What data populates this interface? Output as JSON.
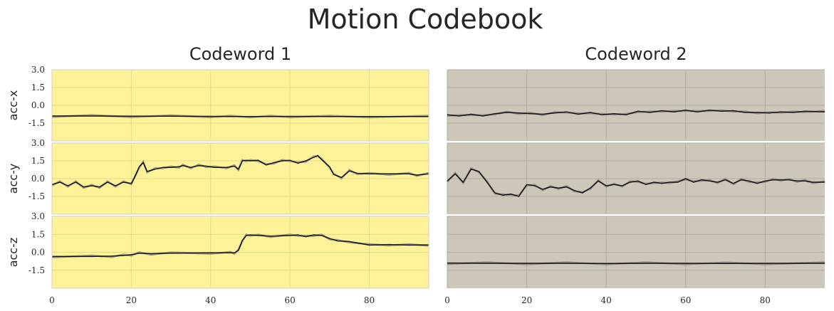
{
  "title": "Motion Codebook",
  "colors": {
    "panel_yellow": "#fef298",
    "panel_gray": "#ccc7b9",
    "yellow_grid": "#e6da8a",
    "gray_grid": "#b3ae9f",
    "recon_line": "#111111",
    "raw_line": "#7a7a72"
  },
  "chart_data": {
    "type": "line",
    "title": "Motion Codebook",
    "grid": true,
    "xlim": [
      0,
      95
    ],
    "ylim": [
      -3.0,
      3.0
    ],
    "x_ticks": [
      "0",
      "20",
      "40",
      "60",
      "80"
    ],
    "y_ticks": [
      "3.0",
      "1.5",
      "0.0",
      "-1.5"
    ],
    "rows": [
      "acc-x",
      "acc-y",
      "acc-z"
    ],
    "columns": [
      {
        "title": "Codeword 1",
        "background": "panel_yellow",
        "show_y_ticks": true,
        "series": {
          "acc-x": {
            "x": [
              0,
              10,
              20,
              30,
              40,
              45,
              50,
              55,
              60,
              70,
              80,
              95
            ],
            "y": [
              -0.9,
              -0.9,
              -0.92,
              -0.92,
              -0.93,
              -0.95,
              -0.94,
              -0.95,
              -0.93,
              -0.95,
              -0.94,
              -0.95
            ]
          },
          "acc-y": {
            "x": [
              0,
              2,
              4,
              6,
              8,
              10,
              12,
              14,
              16,
              18,
              20,
              21,
              22,
              23,
              24,
              26,
              28,
              30,
              32,
              33,
              35,
              37,
              39,
              41,
              44,
              46,
              47,
              48,
              49,
              50,
              52,
              54,
              56,
              58,
              60,
              62,
              64,
              66,
              67,
              68,
              70,
              71,
              73,
              75,
              77,
              80,
              85,
              90,
              92,
              95
            ],
            "y": [
              -0.5,
              -0.3,
              -0.6,
              -0.3,
              -0.7,
              -0.6,
              -0.7,
              -0.3,
              -0.6,
              -0.3,
              -0.4,
              0.2,
              1.0,
              1.35,
              0.6,
              0.8,
              0.95,
              0.95,
              1.0,
              1.1,
              0.95,
              1.1,
              1.05,
              0.95,
              0.95,
              1.05,
              0.8,
              1.5,
              1.55,
              1.5,
              1.55,
              1.15,
              1.35,
              1.5,
              1.55,
              1.3,
              1.5,
              1.8,
              1.95,
              1.6,
              1.0,
              0.35,
              0.1,
              0.65,
              0.45,
              0.4,
              0.4,
              0.4,
              0.3,
              0.4
            ]
          },
          "acc-z": {
            "x": [
              0,
              10,
              15,
              18,
              20,
              22,
              25,
              30,
              40,
              45,
              46,
              47,
              48,
              49,
              50,
              52,
              55,
              60,
              62,
              64,
              66,
              68,
              70,
              72,
              75,
              80,
              85,
              90,
              95
            ],
            "y": [
              -0.35,
              -0.35,
              -0.32,
              -0.27,
              -0.2,
              -0.08,
              -0.12,
              -0.08,
              -0.05,
              -0.05,
              -0.05,
              0.15,
              1.0,
              1.4,
              1.45,
              1.4,
              1.35,
              1.4,
              1.45,
              1.3,
              1.45,
              1.4,
              1.15,
              0.95,
              0.9,
              0.6,
              0.65,
              0.6,
              0.62
            ]
          }
        }
      },
      {
        "title": "Codeword 2",
        "background": "panel_gray",
        "show_y_ticks": false,
        "series": {
          "acc-x": {
            "x": [
              0,
              3,
              6,
              9,
              12,
              15,
              18,
              21,
              24,
              27,
              30,
              33,
              36,
              39,
              42,
              45,
              48,
              51,
              54,
              57,
              60,
              63,
              66,
              69,
              72,
              75,
              78,
              81,
              84,
              87,
              90,
              95
            ],
            "y": [
              -0.8,
              -0.9,
              -0.75,
              -0.9,
              -0.7,
              -0.6,
              -0.65,
              -0.7,
              -0.75,
              -0.65,
              -0.55,
              -0.75,
              -0.6,
              -0.8,
              -0.7,
              -0.8,
              -0.5,
              -0.6,
              -0.45,
              -0.55,
              -0.4,
              -0.55,
              -0.4,
              -0.5,
              -0.45,
              -0.6,
              -0.6,
              -0.65,
              -0.55,
              -0.6,
              -0.5,
              -0.55
            ]
          },
          "acc-y": {
            "x": [
              0,
              2,
              4,
              6,
              8,
              10,
              12,
              14,
              16,
              18,
              20,
              22,
              24,
              26,
              28,
              30,
              32,
              34,
              36,
              38,
              40,
              42,
              44,
              46,
              48,
              50,
              52,
              54,
              56,
              58,
              60,
              62,
              64,
              66,
              68,
              70,
              72,
              74,
              76,
              78,
              80,
              82,
              84,
              86,
              88,
              90,
              92,
              95
            ],
            "y": [
              -0.2,
              0.4,
              -0.3,
              0.8,
              0.6,
              -0.3,
              -1.2,
              -1.4,
              -1.3,
              -1.5,
              -0.5,
              -0.6,
              -0.9,
              -0.7,
              -0.8,
              -0.7,
              -1.0,
              -1.2,
              -0.8,
              -0.2,
              -0.6,
              -0.5,
              -0.6,
              -0.3,
              -0.2,
              -0.5,
              -0.3,
              -0.4,
              -0.3,
              -0.3,
              0.0,
              -0.3,
              -0.1,
              -0.2,
              -0.3,
              -0.1,
              -0.4,
              -0.1,
              -0.2,
              -0.4,
              -0.2,
              -0.1,
              -0.1,
              -0.1,
              -0.2,
              -0.2,
              -0.3,
              -0.3
            ]
          },
          "acc-z": {
            "x": [
              0,
              10,
              20,
              30,
              40,
              50,
              60,
              70,
              80,
              95
            ],
            "y": [
              -0.9,
              -0.92,
              -0.92,
              -0.92,
              -0.93,
              -0.92,
              -0.92,
              -0.93,
              -0.92,
              -0.92
            ]
          }
        }
      }
    ]
  }
}
